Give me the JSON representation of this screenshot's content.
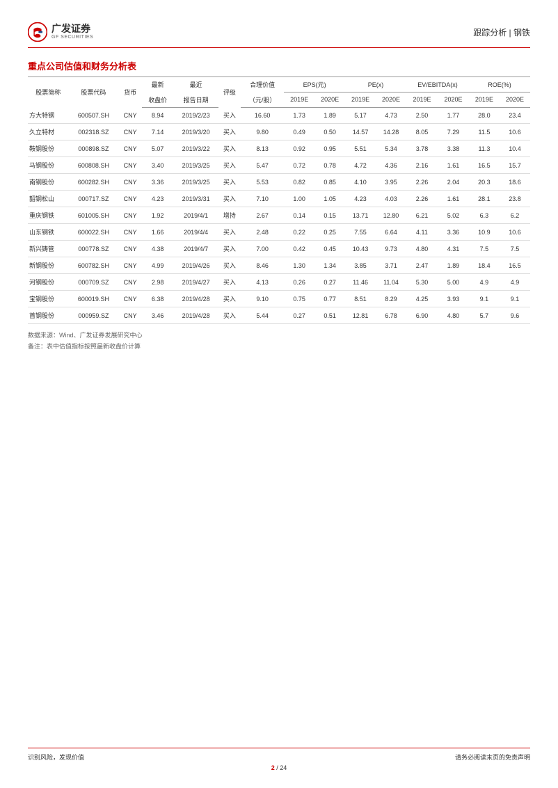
{
  "header": {
    "logo_cn": "广发证券",
    "logo_en": "GF SECURITIES",
    "right_text": "跟踪分析 | 钢铁"
  },
  "section_title": "重点公司估值和财务分析表",
  "table": {
    "head_row1": {
      "name": "股票简称",
      "code": "股票代码",
      "currency": "货币",
      "price": "最新",
      "date": "最近",
      "rating": "评级",
      "fair": "合理价值",
      "eps": "EPS(元)",
      "pe": "PE(x)",
      "ev": "EV/EBITDA(x)",
      "roe": "ROE(%)"
    },
    "head_row2": {
      "price": "收盘价",
      "date": "报告日期",
      "fair": "（元/股）",
      "y2019": "2019E",
      "y2020": "2020E"
    },
    "rows": [
      {
        "name": "方大特钢",
        "code": "600507.SH",
        "cur": "CNY",
        "price": "8.94",
        "date": "2019/2/23",
        "rating": "买入",
        "fair": "16.60",
        "eps19": "1.73",
        "eps20": "1.89",
        "pe19": "5.17",
        "pe20": "4.73",
        "ev19": "2.50",
        "ev20": "1.77",
        "roe19": "28.0",
        "roe20": "23.4"
      },
      {
        "name": "久立特材",
        "code": "002318.SZ",
        "cur": "CNY",
        "price": "7.14",
        "date": "2019/3/20",
        "rating": "买入",
        "fair": "9.80",
        "eps19": "0.49",
        "eps20": "0.50",
        "pe19": "14.57",
        "pe20": "14.28",
        "ev19": "8.05",
        "ev20": "7.29",
        "roe19": "11.5",
        "roe20": "10.6"
      },
      {
        "name": "鞍钢股份",
        "code": "000898.SZ",
        "cur": "CNY",
        "price": "5.07",
        "date": "2019/3/22",
        "rating": "买入",
        "fair": "8.13",
        "eps19": "0.92",
        "eps20": "0.95",
        "pe19": "5.51",
        "pe20": "5.34",
        "ev19": "3.78",
        "ev20": "3.38",
        "roe19": "11.3",
        "roe20": "10.4"
      },
      {
        "name": "马钢股份",
        "code": "600808.SH",
        "cur": "CNY",
        "price": "3.40",
        "date": "2019/3/25",
        "rating": "买入",
        "fair": "5.47",
        "eps19": "0.72",
        "eps20": "0.78",
        "pe19": "4.72",
        "pe20": "4.36",
        "ev19": "2.16",
        "ev20": "1.61",
        "roe19": "16.5",
        "roe20": "15.7"
      },
      {
        "name": "南钢股份",
        "code": "600282.SH",
        "cur": "CNY",
        "price": "3.36",
        "date": "2019/3/25",
        "rating": "买入",
        "fair": "5.53",
        "eps19": "0.82",
        "eps20": "0.85",
        "pe19": "4.10",
        "pe20": "3.95",
        "ev19": "2.26",
        "ev20": "2.04",
        "roe19": "20.3",
        "roe20": "18.6"
      },
      {
        "name": "韶钢松山",
        "code": "000717.SZ",
        "cur": "CNY",
        "price": "4.23",
        "date": "2019/3/31",
        "rating": "买入",
        "fair": "7.10",
        "eps19": "1.00",
        "eps20": "1.05",
        "pe19": "4.23",
        "pe20": "4.03",
        "ev19": "2.26",
        "ev20": "1.61",
        "roe19": "28.1",
        "roe20": "23.8"
      },
      {
        "name": "重庆钢铁",
        "code": "601005.SH",
        "cur": "CNY",
        "price": "1.92",
        "date": "2019/4/1",
        "rating": "增持",
        "fair": "2.67",
        "eps19": "0.14",
        "eps20": "0.15",
        "pe19": "13.71",
        "pe20": "12.80",
        "ev19": "6.21",
        "ev20": "5.02",
        "roe19": "6.3",
        "roe20": "6.2"
      },
      {
        "name": "山东钢铁",
        "code": "600022.SH",
        "cur": "CNY",
        "price": "1.66",
        "date": "2019/4/4",
        "rating": "买入",
        "fair": "2.48",
        "eps19": "0.22",
        "eps20": "0.25",
        "pe19": "7.55",
        "pe20": "6.64",
        "ev19": "4.11",
        "ev20": "3.36",
        "roe19": "10.9",
        "roe20": "10.6"
      },
      {
        "name": "新兴铸管",
        "code": "000778.SZ",
        "cur": "CNY",
        "price": "4.38",
        "date": "2019/4/7",
        "rating": "买入",
        "fair": "7.00",
        "eps19": "0.42",
        "eps20": "0.45",
        "pe19": "10.43",
        "pe20": "9.73",
        "ev19": "4.80",
        "ev20": "4.31",
        "roe19": "7.5",
        "roe20": "7.5"
      },
      {
        "name": "新钢股份",
        "code": "600782.SH",
        "cur": "CNY",
        "price": "4.99",
        "date": "2019/4/26",
        "rating": "买入",
        "fair": "8.46",
        "eps19": "1.30",
        "eps20": "1.34",
        "pe19": "3.85",
        "pe20": "3.71",
        "ev19": "2.47",
        "ev20": "1.89",
        "roe19": "18.4",
        "roe20": "16.5"
      },
      {
        "name": "河钢股份",
        "code": "000709.SZ",
        "cur": "CNY",
        "price": "2.98",
        "date": "2019/4/27",
        "rating": "买入",
        "fair": "4.13",
        "eps19": "0.26",
        "eps20": "0.27",
        "pe19": "11.46",
        "pe20": "11.04",
        "ev19": "5.30",
        "ev20": "5.00",
        "roe19": "4.9",
        "roe20": "4.9"
      },
      {
        "name": "宝钢股份",
        "code": "600019.SH",
        "cur": "CNY",
        "price": "6.38",
        "date": "2019/4/28",
        "rating": "买入",
        "fair": "9.10",
        "eps19": "0.75",
        "eps20": "0.77",
        "pe19": "8.51",
        "pe20": "8.29",
        "ev19": "4.25",
        "ev20": "3.93",
        "roe19": "9.1",
        "roe20": "9.1"
      },
      {
        "name": "首钢股份",
        "code": "000959.SZ",
        "cur": "CNY",
        "price": "3.46",
        "date": "2019/4/28",
        "rating": "买入",
        "fair": "5.44",
        "eps19": "0.27",
        "eps20": "0.51",
        "pe19": "12.81",
        "pe20": "6.78",
        "ev19": "6.90",
        "ev20": "4.80",
        "roe19": "5.7",
        "roe20": "9.6"
      }
    ]
  },
  "notes": {
    "line1": "数据来源：Wind、广发证券发展研究中心",
    "line2": "备注：表中估值指标按照最新收盘价计算"
  },
  "footer": {
    "left": "识别风险，发现价值",
    "right": "请务必阅读末页的免责声明",
    "page_current": "2",
    "page_sep": " / ",
    "page_total": "24"
  },
  "colors": {
    "brand_red": "#c00",
    "text": "#333",
    "muted": "#666",
    "border": "#999",
    "row_border": "#ddd"
  }
}
